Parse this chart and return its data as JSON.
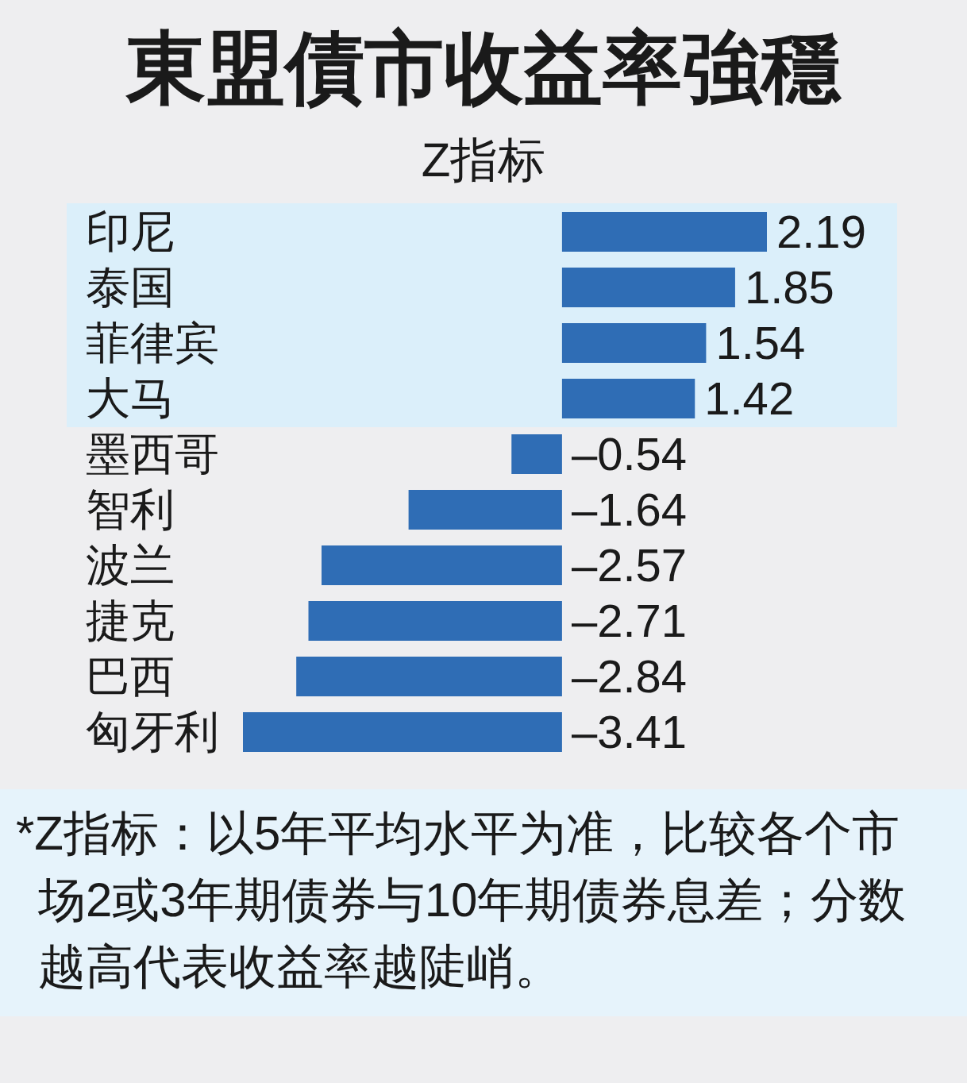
{
  "chart_data": {
    "type": "bar",
    "orientation": "horizontal",
    "title": "東盟債市收益率強穩",
    "subtitle": "Z指标",
    "categories": [
      "印尼",
      "泰国",
      "菲律宾",
      "大马",
      "墨西哥",
      "智利",
      "波兰",
      "捷克",
      "巴西",
      "匈牙利"
    ],
    "values": [
      2.19,
      1.85,
      1.54,
      1.42,
      -0.54,
      -1.64,
      -2.57,
      -2.71,
      -2.84,
      -3.41
    ],
    "value_labels": [
      "2.19",
      "1.85",
      "1.54",
      "1.42",
      "–0.54",
      "–1.64",
      "–2.57",
      "–2.71",
      "–2.84",
      "–3.41"
    ],
    "color": "#2f6db5",
    "bands": [
      {
        "axis": "y",
        "from": "印尼",
        "to": "大马",
        "color": "#dbeffa"
      }
    ],
    "annotations": [
      "*Z指标：以5年平均水平为准，比较各个市场2或3年期债券与10年期债券息差；分数越高代表收益率越陡峭。"
    ]
  }
}
